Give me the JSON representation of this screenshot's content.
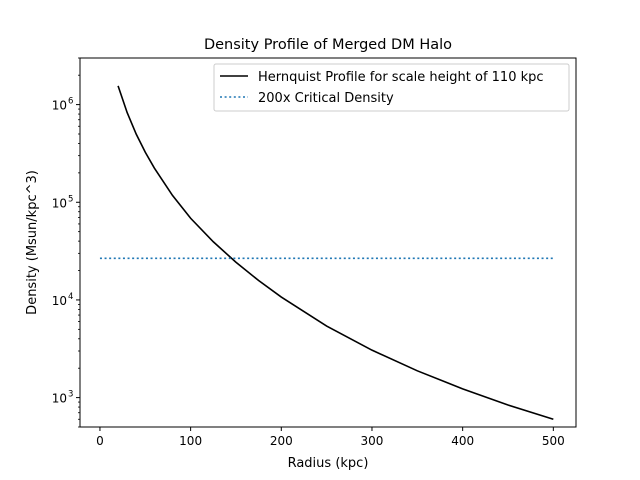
{
  "chart_data": {
    "type": "line",
    "title": "Density Profile of Merged DM Halo",
    "xlabel": "Radius (kpc)",
    "ylabel": "Density (Msun/kpc^3)",
    "xlim": [
      -22,
      525
    ],
    "ylim": [
      500,
      3000000
    ],
    "yscale": "log",
    "x_ticks": [
      0,
      100,
      200,
      300,
      400,
      500
    ],
    "x_tick_labels": [
      "0",
      "100",
      "200",
      "300",
      "400",
      "500"
    ],
    "y_ticks": [
      1000,
      10000,
      100000,
      1000000
    ],
    "y_tick_labels": [
      {
        "base": "10",
        "exp": "3"
      },
      {
        "base": "10",
        "exp": "4"
      },
      {
        "base": "10",
        "exp": "5"
      },
      {
        "base": "10",
        "exp": "6"
      }
    ],
    "grid": false,
    "legend_position": "top-right",
    "series": [
      {
        "name": "Hernquist Profile for scale height of 110 kpc",
        "style": "solid",
        "color": "#000000",
        "x": [
          20,
          30,
          40,
          50,
          60,
          80,
          100,
          125,
          150,
          175,
          200,
          250,
          300,
          350,
          400,
          450,
          500
        ],
        "y": [
          1555000,
          828000,
          498000,
          325000,
          224000,
          117500,
          68600,
          39400,
          24300,
          15800,
          10700,
          5400,
          3060,
          1880,
          1230,
          840,
          600
        ]
      },
      {
        "name": "200x Critical Density",
        "style": "dotted",
        "color": "#1f77b4",
        "x": [
          0,
          500
        ],
        "y": [
          26700,
          26700
        ]
      }
    ]
  }
}
